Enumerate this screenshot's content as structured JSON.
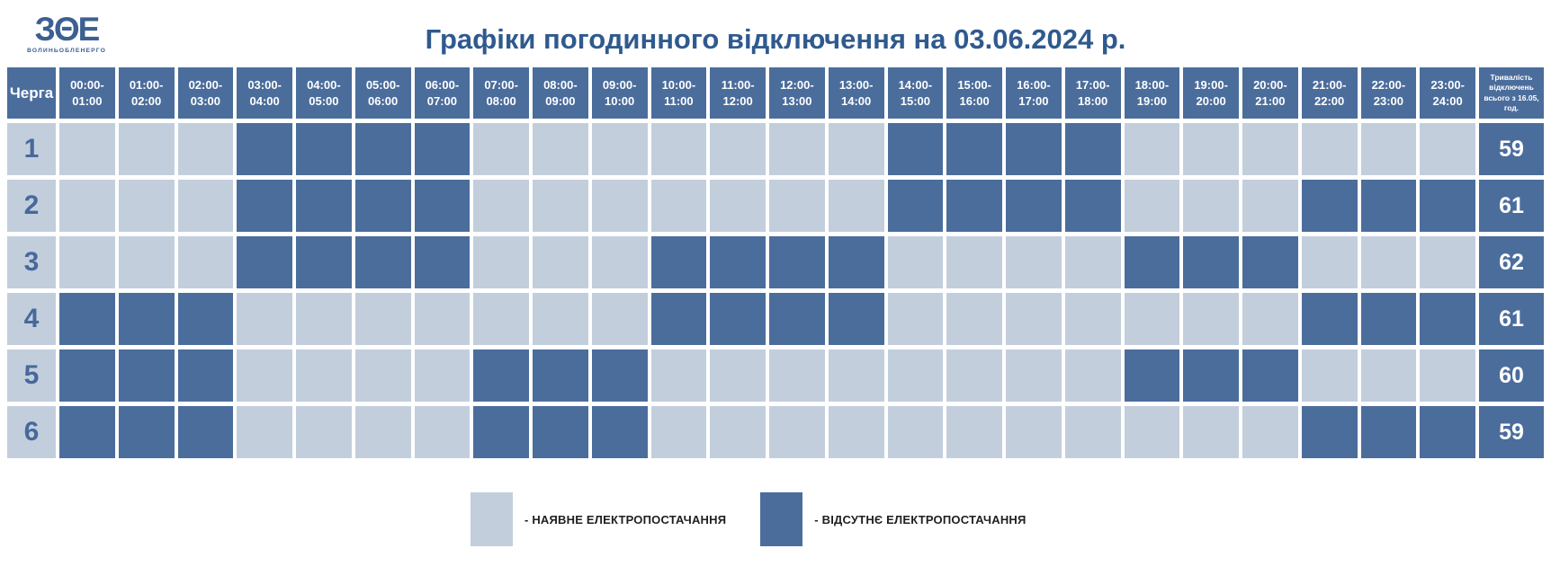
{
  "title": "Графіки погодинного відключення на 03.06.2024 р.",
  "logo": {
    "text": "ЗΘЕ",
    "subtext": "ВОЛИНЬОБЛЕНЕРГО"
  },
  "table": {
    "queue_header": "Черга",
    "duration_header": "Тривалість відключень всього з 16.05, год."
  },
  "legend": {
    "available": "- НАЯВНЕ ЕЛЕКТРОПОСТАЧАННЯ",
    "outage": "- ВІДСУТНЄ ЕЛЕКТРОПОСТАЧАННЯ"
  },
  "colors": {
    "page_bg": "#ffffff",
    "available": "#c3cedd",
    "outage": "#4b6d9c",
    "title": "#2f5a8e",
    "queue_text": "#47699a",
    "legend_text": "#1f1f1f"
  },
  "chart_data": {
    "type": "heatmap",
    "title": "Графіки погодинного відключення на 03.06.2024 р.",
    "x_labels": [
      "00:00-01:00",
      "01:00-02:00",
      "02:00-03:00",
      "03:00-04:00",
      "04:00-05:00",
      "05:00-06:00",
      "06:00-07:00",
      "07:00-08:00",
      "08:00-09:00",
      "09:00-10:00",
      "10:00-11:00",
      "11:00-12:00",
      "12:00-13:00",
      "13:00-14:00",
      "14:00-15:00",
      "15:00-16:00",
      "16:00-17:00",
      "17:00-18:00",
      "18:00-19:00",
      "19:00-20:00",
      "20:00-21:00",
      "21:00-22:00",
      "22:00-23:00",
      "23:00-24:00"
    ],
    "y_labels": [
      "1",
      "2",
      "3",
      "4",
      "5",
      "6"
    ],
    "values": [
      [
        0,
        0,
        0,
        1,
        1,
        1,
        1,
        0,
        0,
        0,
        0,
        0,
        0,
        0,
        1,
        1,
        1,
        1,
        0,
        0,
        0,
        0,
        0,
        0
      ],
      [
        0,
        0,
        0,
        1,
        1,
        1,
        1,
        0,
        0,
        0,
        0,
        0,
        0,
        0,
        1,
        1,
        1,
        1,
        0,
        0,
        0,
        1,
        1,
        1
      ],
      [
        0,
        0,
        0,
        1,
        1,
        1,
        1,
        0,
        0,
        0,
        1,
        1,
        1,
        1,
        0,
        0,
        0,
        0,
        1,
        1,
        1,
        0,
        0,
        0
      ],
      [
        1,
        1,
        1,
        0,
        0,
        0,
        0,
        0,
        0,
        0,
        1,
        1,
        1,
        1,
        0,
        0,
        0,
        0,
        0,
        0,
        0,
        1,
        1,
        1
      ],
      [
        1,
        1,
        1,
        0,
        0,
        0,
        0,
        1,
        1,
        1,
        0,
        0,
        0,
        0,
        0,
        0,
        0,
        0,
        1,
        1,
        1,
        0,
        0,
        0
      ],
      [
        1,
        1,
        1,
        0,
        0,
        0,
        0,
        1,
        1,
        1,
        0,
        0,
        0,
        0,
        0,
        0,
        0,
        0,
        0,
        0,
        0,
        1,
        1,
        1
      ]
    ],
    "value_legend": {
      "0": "НАЯВНЕ ЕЛЕКТРОПОСТАЧАННЯ",
      "1": "ВІДСУТНЄ ЕЛЕКТРОПОСТАЧАННЯ"
    },
    "row_totals_label": "Тривалість відключень всього з 16.05, год.",
    "row_totals": [
      59,
      61,
      62,
      61,
      60,
      59
    ]
  }
}
